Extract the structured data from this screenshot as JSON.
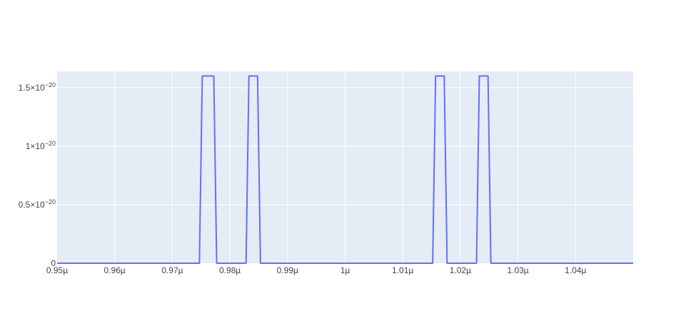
{
  "chart_data": {
    "type": "line",
    "title": "",
    "xlabel": "",
    "ylabel": "",
    "xlim": [
      0.95,
      1.05
    ],
    "ylim": [
      0,
      1.64
    ],
    "x_unit_note_suffix": "µ",
    "x_ticks": [
      {
        "value": 0.95,
        "label": "0.95µ"
      },
      {
        "value": 0.96,
        "label": "0.96µ"
      },
      {
        "value": 0.97,
        "label": "0.97µ"
      },
      {
        "value": 0.98,
        "label": "0.98µ"
      },
      {
        "value": 0.99,
        "label": "0.99µ"
      },
      {
        "value": 1.0,
        "label": "1µ"
      },
      {
        "value": 1.01,
        "label": "1.01µ"
      },
      {
        "value": 1.02,
        "label": "1.02µ"
      },
      {
        "value": 1.03,
        "label": "1.03µ"
      },
      {
        "value": 1.04,
        "label": "1.04µ"
      }
    ],
    "y_ticks": [
      {
        "value": 0,
        "mantissa": "0",
        "exponent": ""
      },
      {
        "value": 0.5,
        "mantissa": "0.5×10",
        "exponent": "−20"
      },
      {
        "value": 1.0,
        "mantissa": "1×10",
        "exponent": "−20"
      },
      {
        "value": 1.5,
        "mantissa": "1.5×10",
        "exponent": "−20"
      }
    ],
    "grid": true,
    "colors": {
      "plot_bg": "#E5ECF6",
      "grid": "#ffffff",
      "line": "#636EFA",
      "tick_text": "#444444"
    },
    "series": [
      {
        "x": [
          0.95,
          0.9747,
          0.9752,
          0.9772,
          0.9777,
          0.9828,
          0.9833,
          0.9848,
          0.9853,
          1.0152,
          1.0157,
          1.0172,
          1.0177,
          1.0228,
          1.0233,
          1.0248,
          1.0253,
          1.05
        ],
        "y": [
          0,
          0,
          1.6,
          1.6,
          0,
          0,
          1.6,
          1.6,
          0,
          0,
          1.6,
          1.6,
          0,
          0,
          1.6,
          1.6,
          0,
          0
        ]
      }
    ]
  }
}
